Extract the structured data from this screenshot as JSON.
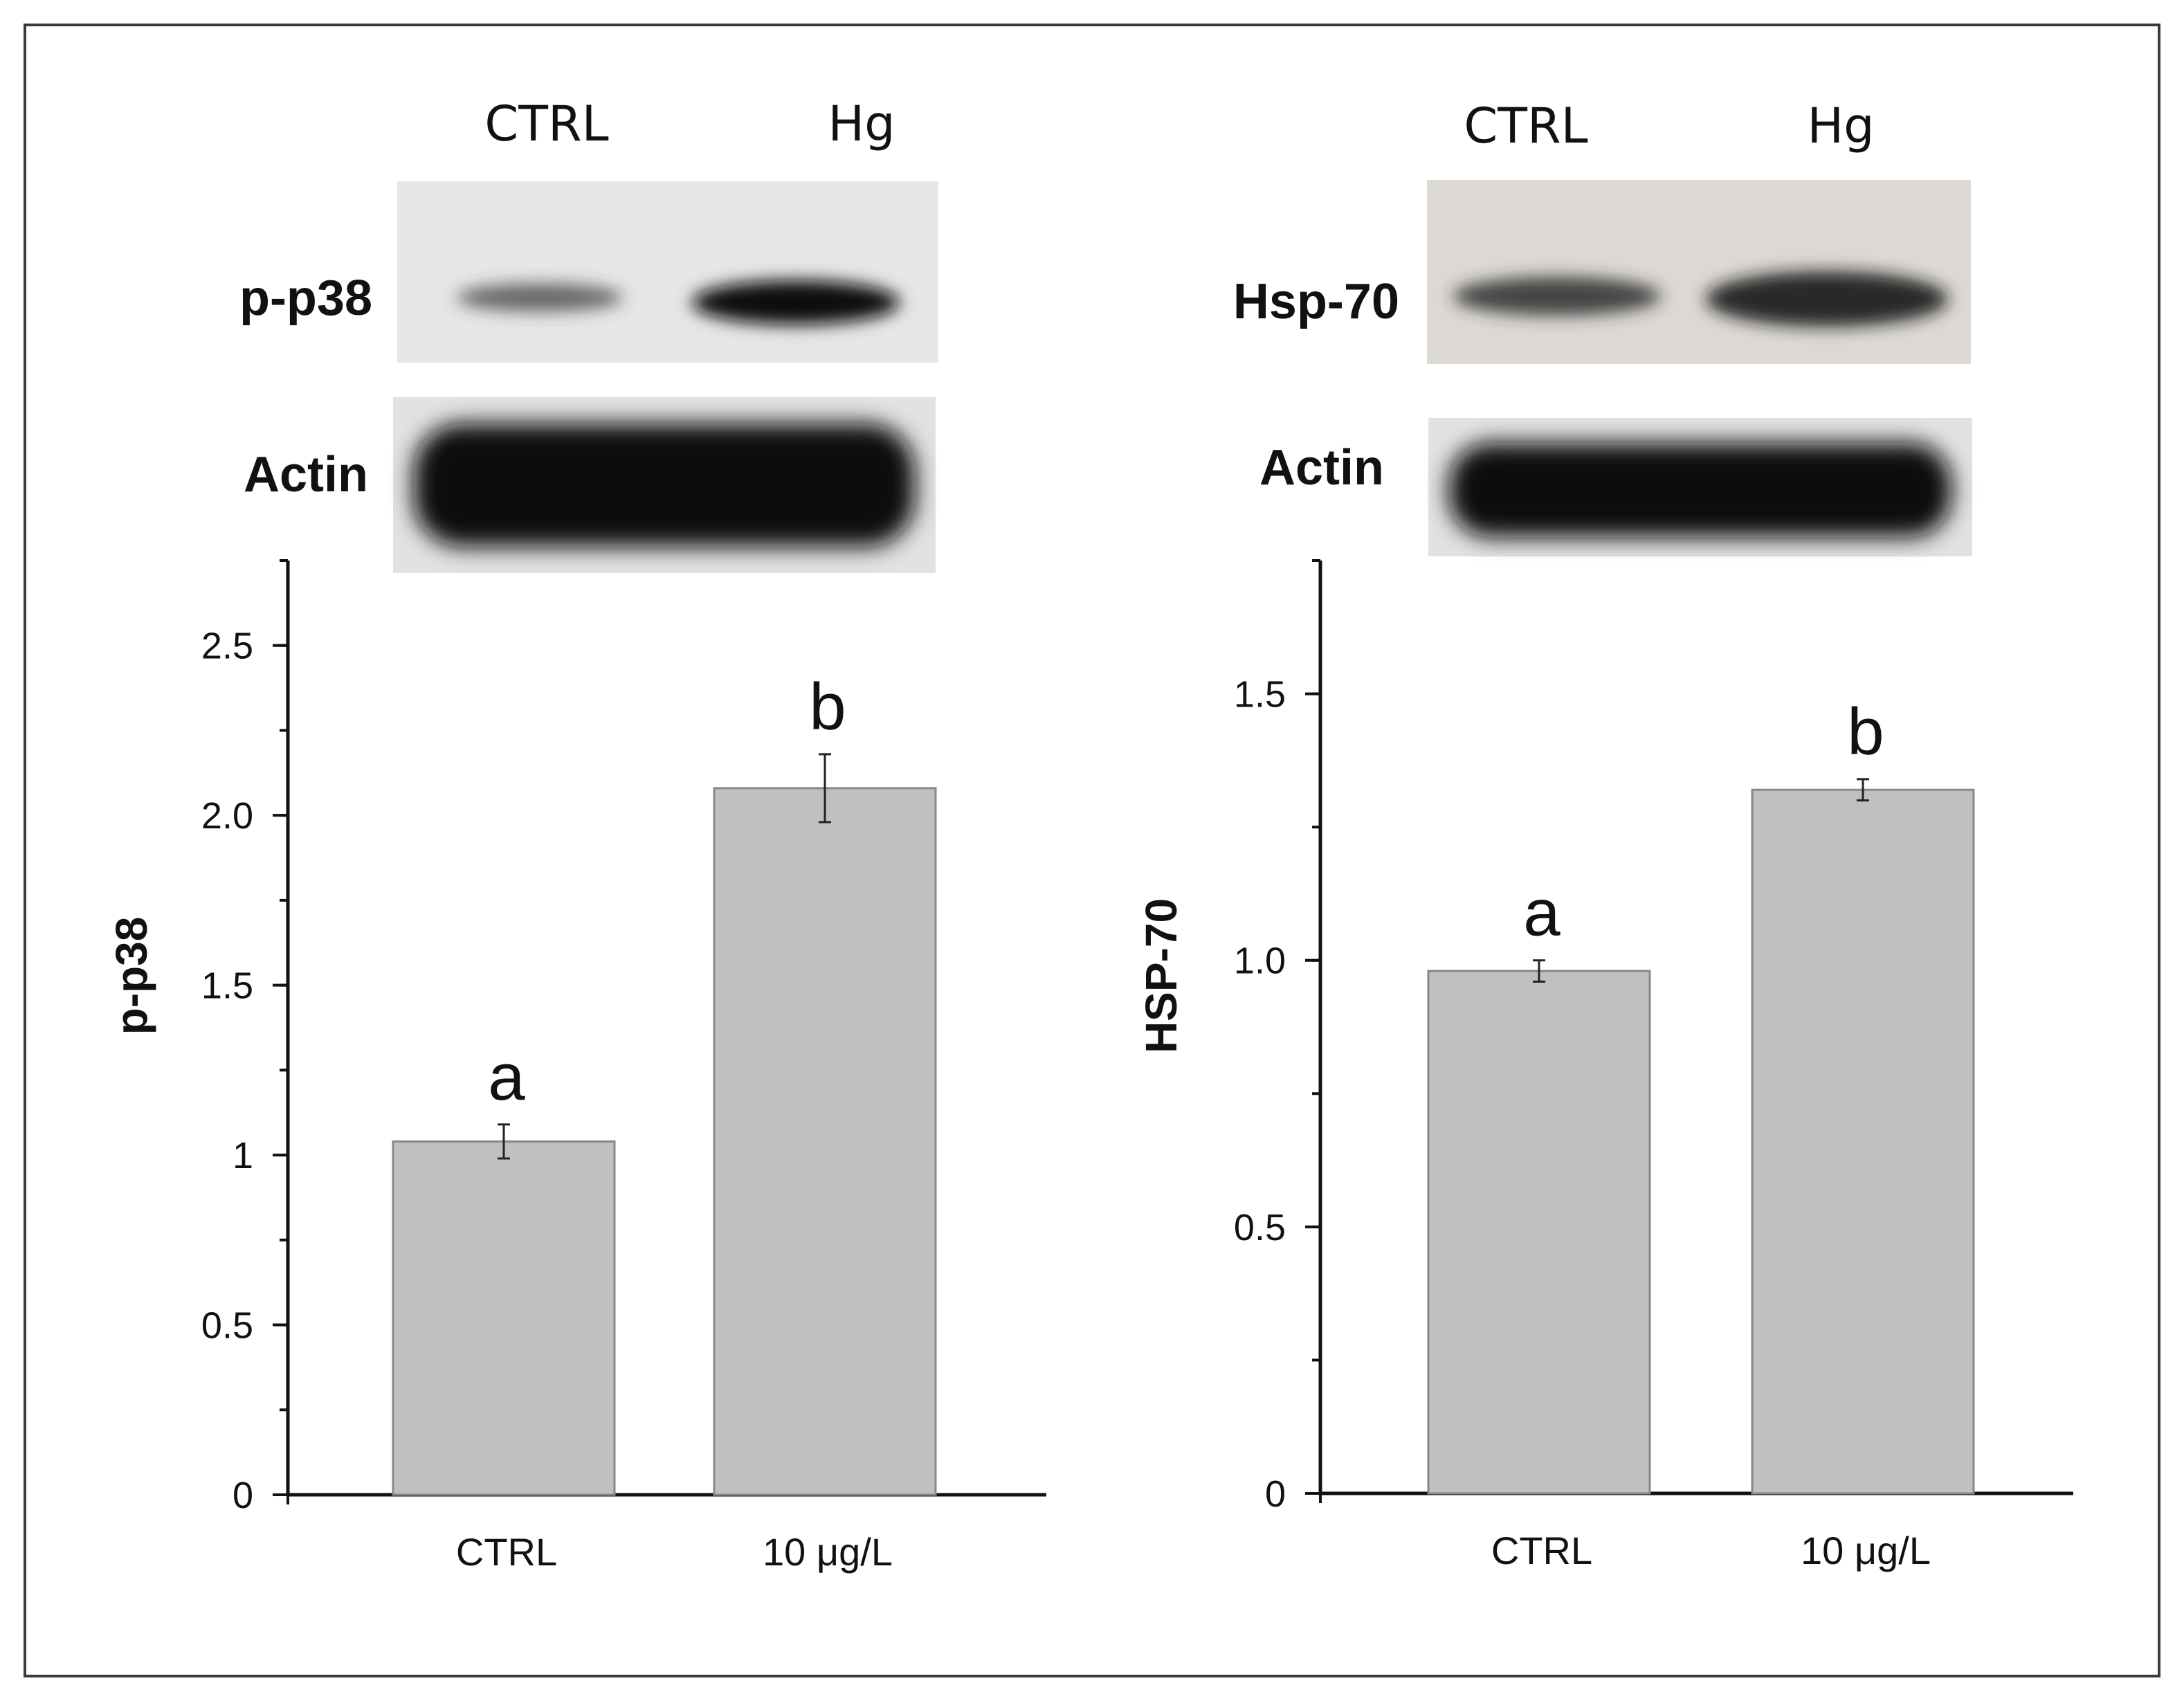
{
  "blots": [
    {
      "lanes": [
        "CTRL",
        "Hg"
      ],
      "target_label": "p-p38",
      "loading_label": "Actin",
      "target_intensity": [
        0.35,
        0.95
      ],
      "loading_intensity": [
        1.0,
        1.0
      ],
      "background": "#e6e6e6"
    },
    {
      "lanes": [
        "CTRL",
        "Hg"
      ],
      "target_label": "Hsp-70",
      "loading_label": "Actin",
      "target_intensity": [
        0.6,
        0.85
      ],
      "loading_intensity": [
        1.0,
        1.0
      ],
      "background": "#dcd9d4"
    }
  ],
  "chart_data": [
    {
      "type": "bar",
      "categories": [
        "CTRL",
        "10 μg/L"
      ],
      "values": [
        1.04,
        2.08
      ],
      "errors": [
        0.05,
        0.1
      ],
      "significance": [
        "a",
        "b"
      ],
      "ylabel": "p-p38",
      "xlabel": "",
      "ylim": [
        0,
        2.75
      ],
      "yticks": [
        0,
        0.5,
        1,
        1.5,
        2.0,
        2.5
      ],
      "ytick_labels": [
        "0",
        "0.5",
        "1",
        "1.5",
        "2.0",
        "2.5"
      ],
      "minor_tick_step": 0.25,
      "bar_color": "#c0c0c0",
      "grid": false
    },
    {
      "type": "bar",
      "categories": [
        "CTRL",
        "10 μg/L"
      ],
      "values": [
        0.98,
        1.32
      ],
      "errors": [
        0.02,
        0.02
      ],
      "significance": [
        "a",
        "b"
      ],
      "ylabel": "HSP-70",
      "xlabel": "",
      "ylim": [
        0,
        1.75
      ],
      "yticks": [
        0,
        0.5,
        1.0,
        1.5
      ],
      "ytick_labels": [
        "0",
        "0.5",
        "1.0",
        "1.5"
      ],
      "minor_tick_step": 0.25,
      "bar_color": "#c0c0c0",
      "grid": false
    }
  ]
}
